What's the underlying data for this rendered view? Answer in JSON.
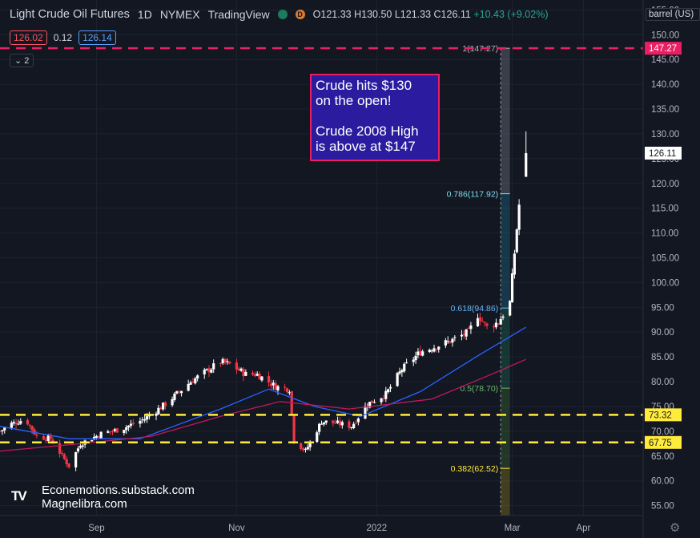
{
  "header": {
    "symbol": "Light Crude Oil Futures",
    "interval": "1D",
    "exchange": "NYMEX",
    "source": "TradingView",
    "status_letter": "D",
    "open": "O121.33",
    "high": "H130.50",
    "low": "L121.33",
    "close": "C126.11",
    "change": "+10.43 (+9.02%)"
  },
  "quotes": {
    "bid": "126.02",
    "spread": "0.12",
    "ask": "126.14"
  },
  "collapse_label": "2",
  "unit_label": "barrel (US)",
  "note": {
    "line1": "Crude hits $130",
    "line2": "on the open!",
    "line3": "Crude 2008 High",
    "line4": "is above at $147"
  },
  "watermark": {
    "line1": "Econemotions.substack.com",
    "line2": "Magnelibra.com"
  },
  "colors": {
    "background": "#131722",
    "up": "#ffffff",
    "down": "#f23645",
    "ma_fast": "#2962ff",
    "ma_slow": "#c2185b",
    "high_line": "#e91e63",
    "support": "#ffeb3b",
    "fib_786": "#80deea",
    "fib_618": "#64b5f6",
    "fib_5": "#66bb6a",
    "fib_382": "#ffeb3b"
  },
  "chart_data": {
    "type": "candlestick",
    "ylim": [
      53,
      157
    ],
    "y_ticks": [
      55,
      60,
      65,
      70,
      75,
      80,
      85,
      90,
      95,
      100,
      105,
      110,
      115,
      120,
      125,
      130,
      135,
      140,
      145,
      150,
      155
    ],
    "x_labels": [
      {
        "label": "Sep",
        "date": "2021-09-01"
      },
      {
        "label": "Nov",
        "date": "2021-11-01"
      },
      {
        "label": "2022",
        "date": "2022-01-01"
      },
      {
        "label": "Mar",
        "date": "2022-03-01"
      },
      {
        "label": "Apr",
        "date": "2022-04-01"
      }
    ],
    "x_range": [
      "2021-07-21",
      "2022-04-27"
    ],
    "price_anchors": [
      [
        "2021-07-21",
        70
      ],
      [
        "2021-07-26",
        71.5
      ],
      [
        "2021-08-01",
        72.5
      ],
      [
        "2021-08-06",
        69
      ],
      [
        "2021-08-12",
        68.5
      ],
      [
        "2021-08-20",
        63
      ],
      [
        "2021-08-25",
        67.5
      ],
      [
        "2021-09-03",
        69.5
      ],
      [
        "2021-09-12",
        70.5
      ],
      [
        "2021-09-22",
        72.5
      ],
      [
        "2021-10-01",
        75.5
      ],
      [
        "2021-10-12",
        80
      ],
      [
        "2021-10-25",
        84
      ],
      [
        "2021-10-29",
        83.5
      ],
      [
        "2021-11-05",
        81.5
      ],
      [
        "2021-11-10",
        81.5
      ],
      [
        "2021-11-18",
        79
      ],
      [
        "2021-11-24",
        78.5
      ],
      [
        "2021-11-26",
        68.2
      ],
      [
        "2021-12-01",
        66
      ],
      [
        "2021-12-08",
        72
      ],
      [
        "2021-12-16",
        71.5
      ],
      [
        "2021-12-21",
        71
      ],
      [
        "2021-12-28",
        75.5
      ],
      [
        "2022-01-05",
        77.5
      ],
      [
        "2022-01-12",
        82.5
      ],
      [
        "2022-01-20",
        86
      ],
      [
        "2022-02-01",
        88
      ],
      [
        "2022-02-10",
        90
      ],
      [
        "2022-02-14",
        93.5
      ],
      [
        "2022-02-18",
        91
      ],
      [
        "2022-02-23",
        92
      ],
      [
        "2022-02-28",
        96
      ],
      [
        "2022-03-02",
        106
      ],
      [
        "2022-03-04",
        115.7
      ],
      [
        "2022-03-07",
        119.5
      ]
    ],
    "last_candle": {
      "date": "2022-03-07",
      "open": 121.33,
      "high": 130.5,
      "low": 121.33,
      "close": 126.11
    },
    "moving_averages": [
      {
        "points": [
          [
            "2021-07-21",
            71
          ],
          [
            "2021-08-20",
            68.5
          ],
          [
            "2021-09-20",
            68.5
          ],
          [
            "2021-10-25",
            74.5
          ],
          [
            "2021-11-15",
            78.5
          ],
          [
            "2021-12-05",
            75
          ],
          [
            "2021-12-25",
            73
          ],
          [
            "2022-01-20",
            78
          ],
          [
            "2022-02-15",
            85.5
          ],
          [
            "2022-03-07",
            91
          ]
        ]
      },
      {
        "points": [
          [
            "2021-07-21",
            66
          ],
          [
            "2021-08-25",
            67.5
          ],
          [
            "2021-09-25",
            69
          ],
          [
            "2021-10-25",
            73
          ],
          [
            "2021-11-20",
            76
          ],
          [
            "2021-12-20",
            74.5
          ],
          [
            "2022-01-25",
            76.5
          ],
          [
            "2022-02-20",
            81.5
          ],
          [
            "2022-03-07",
            84.5
          ]
        ]
      }
    ],
    "horizontal_levels": [
      {
        "value": 147.27,
        "label": "147.27"
      },
      {
        "value": 73.32,
        "label": "73.32"
      },
      {
        "value": 67.75,
        "label": "67.75"
      }
    ],
    "last_price_label": "126.11",
    "fib": {
      "start_date": "2022-02-24",
      "end_date": "2022-02-28",
      "levels": [
        {
          "value": 147.27,
          "label": "1(147.27)"
        },
        {
          "value": 117.92,
          "label": "0.786(117.92)"
        },
        {
          "value": 94.86,
          "label": "0.618(94.86)"
        },
        {
          "value": 78.7,
          "label": "0.5(78.70)"
        },
        {
          "value": 62.52,
          "label": "0.382(62.52)"
        }
      ]
    }
  }
}
